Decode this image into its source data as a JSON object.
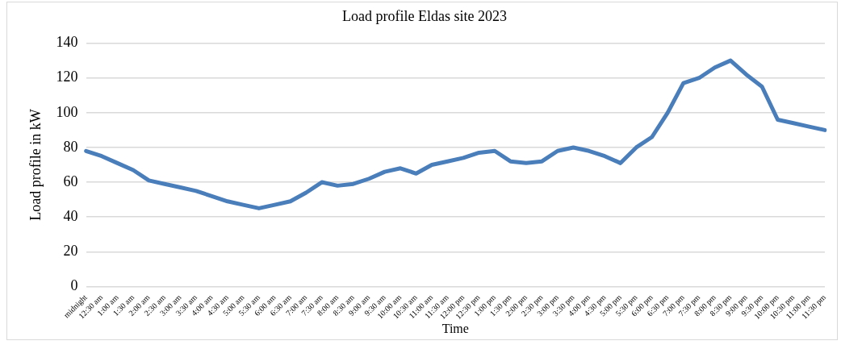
{
  "chart_data": {
    "type": "line",
    "title": "Load profile Eldas site 2023",
    "xlabel": "Time",
    "ylabel": "Load profile in kW",
    "categories": [
      "midnight",
      "12:30 am",
      "1:00 am",
      "1:30 am",
      "2:00 am",
      "2:30 am",
      "3:00 am",
      "3:30 am",
      "4:00 am",
      "4:30 am",
      "5:00 am",
      "5:30 am",
      "6:00 am",
      "6:30 am",
      "7:00 am",
      "7:30 am",
      "8:00 am",
      "8:30 am",
      "9:00 am",
      "9:30 am",
      "10:00 am",
      "10:30 am",
      "11:00 am",
      "11:30 am",
      "12:00 pm",
      "12:30 pm",
      "1:00 pm",
      "1:30 pm",
      "2:00 pm",
      "2:30 pm",
      "3:00 pm",
      "3:30 pm",
      "4:00 pm",
      "4:30 pm",
      "5:00 pm",
      "5:30 pm",
      "6:00 pm",
      "6:30 pm",
      "7:00 pm",
      "7:30 pm",
      "8:00 pm",
      "8:30 pm",
      "9:00 pm",
      "9:30 pm",
      "10:00 pm",
      "10:30 pm",
      "11:00 pm",
      "11:30 pm"
    ],
    "series": [
      {
        "color": "#4a7ebb",
        "values": [
          78,
          75,
          71,
          67,
          61,
          59,
          57,
          55,
          52,
          49,
          47,
          45,
          47,
          49,
          54,
          60,
          58,
          59,
          62,
          66,
          68,
          65,
          70,
          72,
          74,
          77,
          78,
          72,
          71,
          72,
          78,
          80,
          78,
          75,
          71,
          80,
          86,
          100,
          117,
          120,
          126,
          130,
          122,
          115,
          96,
          94,
          92,
          90
        ]
      }
    ],
    "ylim": [
      0,
      140
    ],
    "yticks": [
      0,
      20,
      40,
      60,
      80,
      100,
      120,
      140
    ],
    "grid": "y",
    "legend": false,
    "marker": "none",
    "line_style": "solid"
  }
}
